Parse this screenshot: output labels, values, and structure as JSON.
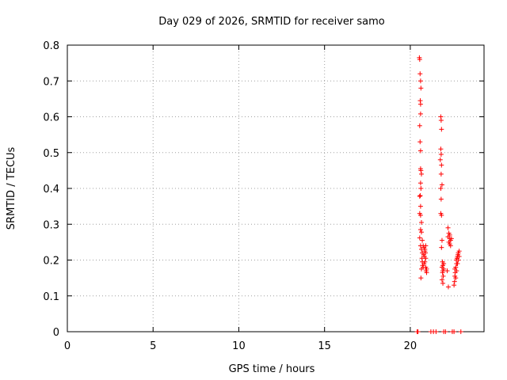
{
  "chart_data": {
    "type": "scatter",
    "title": "Day 029 of 2026, SRMTID for receiver samo",
    "xlabel": "GPS time / hours",
    "ylabel": "SRMTID / TECUs",
    "xlim": [
      0,
      24.3
    ],
    "ylim": [
      0,
      0.8
    ],
    "xticks": [
      0,
      5,
      10,
      15,
      20
    ],
    "yticks": [
      0,
      0.1,
      0.2,
      0.3,
      0.4,
      0.5,
      0.6,
      0.7,
      0.8
    ],
    "grid": true,
    "marker": "plus",
    "series_color": "#ff0000",
    "legend": "none",
    "points": [
      [
        20.53,
        0.765
      ],
      [
        20.55,
        0.76
      ],
      [
        20.57,
        0.72
      ],
      [
        20.6,
        0.7
      ],
      [
        20.62,
        0.68
      ],
      [
        20.58,
        0.645
      ],
      [
        20.6,
        0.635
      ],
      [
        20.6,
        0.608
      ],
      [
        20.55,
        0.575
      ],
      [
        20.57,
        0.53
      ],
      [
        20.6,
        0.505
      ],
      [
        20.6,
        0.455
      ],
      [
        20.62,
        0.45
      ],
      [
        20.65,
        0.44
      ],
      [
        20.6,
        0.415
      ],
      [
        20.62,
        0.4
      ],
      [
        20.55,
        0.378
      ],
      [
        20.58,
        0.38
      ],
      [
        20.6,
        0.35
      ],
      [
        20.55,
        0.33
      ],
      [
        20.6,
        0.325
      ],
      [
        20.65,
        0.305
      ],
      [
        20.6,
        0.285
      ],
      [
        20.65,
        0.278
      ],
      [
        20.55,
        0.262
      ],
      [
        20.7,
        0.255
      ],
      [
        20.6,
        0.24
      ],
      [
        20.65,
        0.23
      ],
      [
        20.7,
        0.22
      ],
      [
        20.68,
        0.205
      ],
      [
        20.7,
        0.195
      ],
      [
        20.72,
        0.185
      ],
      [
        20.75,
        0.18
      ],
      [
        20.65,
        0.175
      ],
      [
        20.62,
        0.15
      ],
      [
        20.75,
        0.24
      ],
      [
        20.8,
        0.235
      ],
      [
        20.85,
        0.23
      ],
      [
        20.9,
        0.24
      ],
      [
        20.88,
        0.22
      ],
      [
        20.82,
        0.21
      ],
      [
        20.9,
        0.205
      ],
      [
        20.85,
        0.195
      ],
      [
        20.8,
        0.19
      ],
      [
        20.9,
        0.18
      ],
      [
        20.92,
        0.17
      ],
      [
        20.95,
        0.165
      ],
      [
        20.85,
        0.225
      ],
      [
        20.78,
        0.215
      ],
      [
        20.95,
        0.175
      ],
      [
        21.78,
        0.6
      ],
      [
        21.8,
        0.59
      ],
      [
        21.82,
        0.565
      ],
      [
        21.78,
        0.51
      ],
      [
        21.8,
        0.495
      ],
      [
        21.75,
        0.48
      ],
      [
        21.82,
        0.465
      ],
      [
        21.8,
        0.44
      ],
      [
        21.85,
        0.41
      ],
      [
        21.78,
        0.4
      ],
      [
        21.8,
        0.37
      ],
      [
        21.78,
        0.33
      ],
      [
        21.82,
        0.325
      ],
      [
        21.85,
        0.255
      ],
      [
        21.82,
        0.235
      ],
      [
        21.88,
        0.195
      ],
      [
        21.9,
        0.185
      ],
      [
        21.85,
        0.18
      ],
      [
        21.9,
        0.17
      ],
      [
        21.88,
        0.165
      ],
      [
        21.92,
        0.155
      ],
      [
        21.85,
        0.145
      ],
      [
        21.9,
        0.135
      ],
      [
        21.95,
        0.19
      ],
      [
        21.95,
        0.175
      ],
      [
        22.2,
        0.29
      ],
      [
        22.25,
        0.275
      ],
      [
        22.3,
        0.27
      ],
      [
        22.2,
        0.265
      ],
      [
        22.3,
        0.26
      ],
      [
        22.35,
        0.255
      ],
      [
        22.25,
        0.25
      ],
      [
        22.4,
        0.26
      ],
      [
        22.3,
        0.245
      ],
      [
        22.35,
        0.24
      ],
      [
        22.22,
        0.125
      ],
      [
        22.15,
        0.17
      ],
      [
        22.55,
        0.13
      ],
      [
        22.58,
        0.14
      ],
      [
        22.6,
        0.155
      ],
      [
        22.62,
        0.165
      ],
      [
        22.6,
        0.175
      ],
      [
        22.65,
        0.18
      ],
      [
        22.7,
        0.19
      ],
      [
        22.68,
        0.2
      ],
      [
        22.72,
        0.205
      ],
      [
        22.75,
        0.21
      ],
      [
        22.78,
        0.215
      ],
      [
        22.8,
        0.22
      ],
      [
        22.85,
        0.225
      ],
      [
        22.7,
        0.17
      ],
      [
        22.65,
        0.15
      ],
      [
        22.8,
        0.2
      ],
      [
        22.75,
        0.19
      ],
      [
        22.85,
        0.21
      ],
      [
        20.4,
        0.0
      ],
      [
        20.45,
        0.0
      ],
      [
        21.2,
        0.0
      ],
      [
        21.35,
        0.0
      ],
      [
        21.5,
        0.0
      ],
      [
        21.95,
        0.0
      ],
      [
        22.05,
        0.0
      ],
      [
        22.45,
        0.0
      ],
      [
        22.55,
        0.0
      ],
      [
        22.95,
        0.0
      ]
    ]
  }
}
